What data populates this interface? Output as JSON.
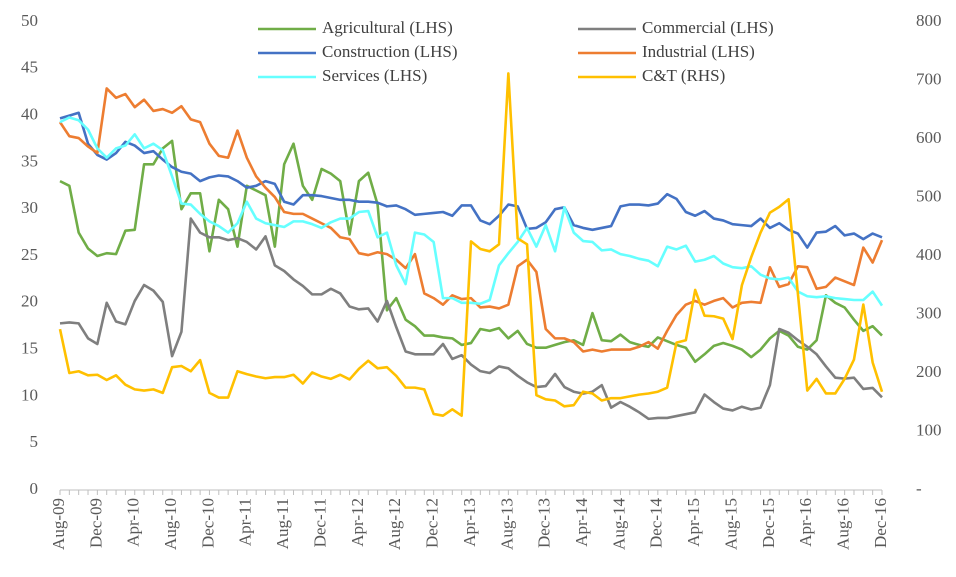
{
  "chart_data": {
    "type": "line",
    "categories": [
      "Aug-09",
      null,
      null,
      null,
      "Dec-09",
      null,
      null,
      null,
      "Apr-10",
      null,
      null,
      null,
      "Aug-10",
      null,
      null,
      null,
      "Dec-10",
      null,
      null,
      null,
      "Apr-11",
      null,
      null,
      null,
      "Aug-11",
      null,
      null,
      null,
      "Dec-11",
      null,
      null,
      null,
      "Apr-12",
      null,
      null,
      null,
      "Aug-12",
      null,
      null,
      null,
      "Dec-12",
      null,
      null,
      null,
      "Apr-13",
      null,
      null,
      null,
      "Aug-13",
      null,
      null,
      null,
      "Dec-13",
      null,
      null,
      null,
      "Apr-14",
      null,
      null,
      null,
      "Aug-14",
      null,
      null,
      null,
      "Dec-14",
      null,
      null,
      null,
      "Apr-15",
      null,
      null,
      null,
      "Aug-15",
      null,
      null,
      null,
      "Dec-15",
      null,
      null,
      null,
      "Apr-16",
      null,
      null,
      null,
      "Aug-16",
      null,
      null,
      null,
      "Dec-16"
    ],
    "series": [
      {
        "name": "Agricultural (LHS)",
        "color": "#70ad47",
        "values": [
          33,
          32.5,
          27.5,
          25.8,
          25,
          25.3,
          25.2,
          27.7,
          27.8,
          34.8,
          34.8,
          36.5,
          37.3,
          30,
          31.7,
          31.7,
          25.5,
          31,
          30,
          26,
          32.5,
          32,
          31.5,
          26,
          34.8,
          37,
          32.5,
          31,
          34.3,
          33.8,
          33,
          27.3,
          33,
          33.9,
          30.5,
          19.2,
          20.5,
          18.2,
          17.5,
          16.5,
          16.5,
          16.3,
          16.2,
          15.5,
          15.7,
          17.2,
          17,
          17.3,
          16.2,
          17,
          15.6,
          15.2,
          15.2,
          15.5,
          15.8,
          16,
          15.5,
          18.9,
          16,
          15.9,
          16.6,
          15.8,
          15.5,
          15.3,
          16.3,
          15.9,
          15.5,
          15.2,
          13.7,
          14.5,
          15.4,
          15.7,
          15.4,
          15,
          14.2,
          15,
          16.2,
          17,
          16.5,
          15.3,
          15,
          16,
          20.8,
          20,
          19.5,
          18.2,
          17,
          17.5,
          16.5
        ]
      },
      {
        "name": "Commercial (LHS)",
        "color": "#7f7f7f",
        "values": [
          17.8,
          17.9,
          17.8,
          16.2,
          15.6,
          20,
          18,
          17.7,
          20.2,
          21.9,
          21.3,
          20.1,
          14.3,
          16.9,
          29,
          27.5,
          27,
          27,
          26.7,
          26.9,
          26.5,
          25.7,
          27.1,
          24,
          23.4,
          22.5,
          21.8,
          20.9,
          20.9,
          21.5,
          21,
          19.6,
          19.3,
          19.4,
          18,
          20.2,
          17.4,
          14.8,
          14.5,
          14.5,
          14.5,
          15.6,
          14,
          14.4,
          13.4,
          12.7,
          12.5,
          13.2,
          13,
          12.2,
          11.5,
          11,
          11.1,
          12.4,
          11,
          10.5,
          10.3,
          10.5,
          11.2,
          8.8,
          9.4,
          8.9,
          8.3,
          7.6,
          7.7,
          7.7,
          7.9,
          8.1,
          8.3,
          10.2,
          9.4,
          8.7,
          8.5,
          8.9,
          8.6,
          8.8,
          11.2,
          17.2,
          16.8,
          16,
          15.3,
          14.5,
          13.2,
          12,
          11.9,
          12,
          10.8,
          10.9,
          9.9
        ]
      },
      {
        "name": "Construction (LHS)",
        "color": "#4472c4",
        "values": [
          39.7,
          40,
          40.3,
          37,
          35.8,
          35.3,
          36,
          37.2,
          36.8,
          36,
          36.2,
          35.3,
          34.5,
          34,
          33.8,
          33,
          33.4,
          33.6,
          33.5,
          33,
          32.3,
          32.5,
          33,
          32.7,
          30.8,
          30.5,
          31.5,
          31.5,
          31.4,
          31.2,
          31,
          31,
          30.8,
          30.8,
          30.7,
          30.3,
          30.4,
          30,
          29.4,
          29.5,
          29.6,
          29.7,
          29.3,
          30.4,
          30.4,
          28.8,
          28.4,
          29.3,
          30.5,
          30.3,
          27.9,
          28,
          28.6,
          30,
          30.2,
          28.3,
          28,
          27.8,
          28,
          28.2,
          30.3,
          30.5,
          30.5,
          30.4,
          30.6,
          31.6,
          31.1,
          29.7,
          29.3,
          29.8,
          29,
          28.8,
          28.4,
          28.3,
          28.2,
          29,
          28,
          28.5,
          27.8,
          27.4,
          25.9,
          27.5,
          27.6,
          28.2,
          27.2,
          27.4,
          26.8,
          27.4,
          27
        ]
      },
      {
        "name": "Industrial (LHS)",
        "color": "#ed7d31",
        "values": [
          39.3,
          37.8,
          37.6,
          36.7,
          36,
          42.9,
          41.9,
          42.3,
          40.9,
          41.7,
          40.5,
          40.7,
          40.3,
          41,
          39.6,
          39.3,
          37,
          35.7,
          35.5,
          38.4,
          35.5,
          33.5,
          32.3,
          31.3,
          29.7,
          29.5,
          29.5,
          29,
          28.5,
          28,
          27,
          26.8,
          25.3,
          25.1,
          25.4,
          25.2,
          24.6,
          23.7,
          25.2,
          21,
          20.5,
          19.8,
          20.8,
          20.4,
          20.5,
          19.5,
          19.6,
          19.4,
          19.8,
          23.9,
          24.6,
          23.3,
          17.2,
          16.2,
          16.2,
          15.8,
          14.8,
          15,
          14.8,
          15,
          15,
          15,
          15.3,
          15.8,
          15.1,
          17,
          18.7,
          19.8,
          20.2,
          19.8,
          20.2,
          20.5,
          19.5,
          20,
          20.1,
          20,
          23.8,
          21.7,
          22,
          23.9,
          23.8,
          21.5,
          21.7,
          22.7,
          22.3,
          21.9,
          25.9,
          24.3,
          26.7
        ]
      },
      {
        "name": "Services (LHS)",
        "color": "#66ffff",
        "values": [
          39.3,
          39.8,
          39.5,
          38.5,
          36.5,
          35.5,
          36.5,
          36.8,
          38,
          36.5,
          37,
          36.3,
          33.5,
          30.6,
          30.5,
          29.5,
          28.7,
          28.2,
          27.5,
          28.5,
          30.8,
          29,
          28.5,
          28.3,
          28.1,
          28.7,
          28.7,
          28.4,
          28,
          28.6,
          29,
          29,
          29.7,
          29.8,
          27,
          27.5,
          24,
          22,
          27.5,
          27.3,
          26.5,
          20.5,
          20.5,
          20,
          20,
          19.9,
          20.3,
          24,
          25.3,
          26.5,
          28,
          26,
          28.3,
          25.5,
          30.2,
          27.5,
          26.6,
          26.5,
          25.6,
          25.7,
          25.2,
          25,
          24.7,
          24.5,
          23.9,
          26,
          25.7,
          26.1,
          24.4,
          24.6,
          25,
          24.2,
          23.8,
          23.7,
          23.9,
          23,
          22.6,
          22.5,
          22.7,
          21.2,
          20.7,
          20.6,
          20.7,
          20.5,
          20.4,
          20.3,
          20.3,
          21.2,
          19.7
        ]
      },
      {
        "name": "C&T (RHS)",
        "color": "#ffc000",
        "axis": "y2",
        "values": [
          275,
          200,
          203,
          196,
          197,
          188,
          196,
          180,
          172,
          170,
          172,
          166,
          210,
          212,
          203,
          222,
          166,
          158,
          158,
          203,
          198,
          194,
          191,
          193,
          193,
          197,
          182,
          201,
          194,
          190,
          197,
          189,
          207,
          221,
          208,
          210,
          195,
          175,
          175,
          172,
          130,
          127,
          138,
          127,
          425,
          412,
          408,
          420,
          712,
          430,
          420,
          162,
          155,
          153,
          143,
          145,
          168,
          165,
          153,
          157,
          157,
          160,
          163,
          165,
          168,
          175,
          252,
          256,
          342,
          298,
          297,
          293,
          258,
          350,
          398,
          440,
          474,
          484,
          497,
          335,
          170,
          190,
          165,
          165,
          190,
          223,
          317,
          218,
          168
        ]
      }
    ],
    "ylim": [
      0,
      50
    ],
    "yticks": [
      0,
      5,
      10,
      15,
      20,
      25,
      30,
      35,
      40,
      45,
      50
    ],
    "y2lim": [
      0,
      800
    ],
    "y2ticks": [
      {
        "value": 0,
        "label": "-"
      },
      100,
      200,
      300,
      400,
      500,
      600,
      700,
      800
    ],
    "grid": false,
    "legend": "top"
  }
}
